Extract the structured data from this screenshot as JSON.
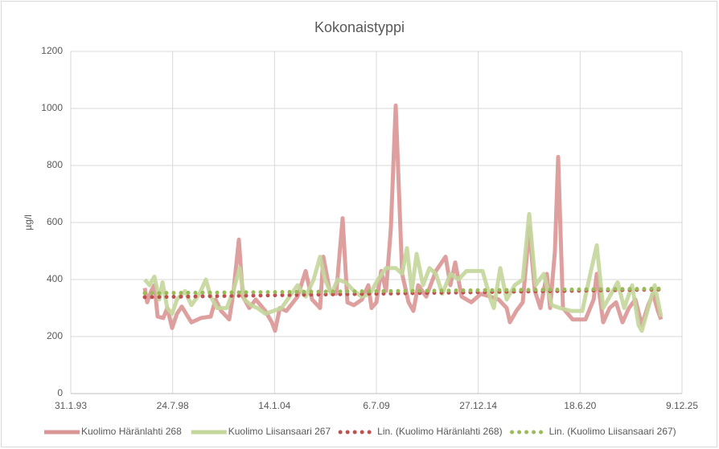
{
  "chart_data": {
    "type": "line",
    "title": "Kokonaistyppi",
    "y_label": "µg/l",
    "xlim": [
      34000,
      46000
    ],
    "xticks": [
      {
        "value": 34000,
        "label": "31.1.93"
      },
      {
        "value": 36000,
        "label": "24.7.98"
      },
      {
        "value": 38000,
        "label": "14.1.04"
      },
      {
        "value": 40000,
        "label": "6.7.09"
      },
      {
        "value": 42000,
        "label": "27.12.14"
      },
      {
        "value": 44000,
        "label": "18.6.20"
      },
      {
        "value": 46000,
        "label": "9.12.25"
      }
    ],
    "ylim": [
      0,
      1200
    ],
    "yticks": [
      0,
      200,
      400,
      600,
      800,
      1000,
      1200
    ],
    "grid": true,
    "legend": "bottom",
    "series": [
      {
        "name": "Kuolimo Häränlahti 268",
        "color": "#d99694",
        "style": "solid",
        "x": [
          35453,
          35500,
          35579,
          35642,
          35705,
          35816,
          35895,
          35990,
          36084,
          36179,
          36368,
          36558,
          36747,
          36842,
          36953,
          37111,
          37190,
          37300,
          37379,
          37505,
          37632,
          37821,
          37947,
          38011,
          38105,
          38232,
          38453,
          38611,
          38737,
          38895,
          38958,
          39084,
          39211,
          39337,
          39432,
          39558,
          39716,
          39842,
          39905,
          40000,
          40095,
          40190,
          40284,
          40379,
          40505,
          40632,
          40727,
          40821,
          40979,
          41169,
          41358,
          41453,
          41548,
          41674,
          41863,
          42053,
          42242,
          42400,
          42558,
          42621,
          42748,
          42874,
          43000,
          43111,
          43221,
          43348,
          43411,
          43506,
          43569,
          43663,
          43853,
          44106,
          44264,
          44327,
          44453,
          44579,
          44706,
          44832,
          44958,
          45085,
          45211,
          45337,
          45432,
          45527,
          45590
        ],
        "values": [
          370,
          320,
          360,
          380,
          270,
          265,
          300,
          230,
          280,
          305,
          250,
          265,
          270,
          330,
          290,
          260,
          350,
          540,
          340,
          300,
          330,
          290,
          250,
          220,
          300,
          290,
          340,
          430,
          330,
          300,
          480,
          360,
          350,
          615,
          320,
          310,
          330,
          380,
          300,
          320,
          430,
          360,
          580,
          1010,
          420,
          320,
          290,
          380,
          340,
          430,
          480,
          380,
          460,
          340,
          320,
          350,
          340,
          330,
          300,
          250,
          290,
          320,
          580,
          360,
          300,
          420,
          300,
          500,
          830,
          300,
          260,
          260,
          330,
          420,
          250,
          300,
          320,
          250,
          300,
          330,
          240,
          310,
          350,
          290,
          260
        ]
      },
      {
        "name": "Kuolimo Liisansaari 267",
        "color": "#c3d69b",
        "style": "solid",
        "x": [
          35453,
          35547,
          35642,
          35737,
          35800,
          35895,
          35990,
          36084,
          36242,
          36368,
          36526,
          36653,
          36747,
          36874,
          37063,
          37190,
          37316,
          37411,
          37537,
          37663,
          37821,
          37979,
          38137,
          38295,
          38453,
          38611,
          38769,
          38895,
          38990,
          39116,
          39242,
          39400,
          39558,
          39716,
          39874,
          40032,
          40190,
          40379,
          40505,
          40600,
          40695,
          40790,
          40916,
          41042,
          41169,
          41295,
          41453,
          41611,
          41769,
          42084,
          42242,
          42306,
          42432,
          42558,
          42716,
          42874,
          43000,
          43127,
          43285,
          43442,
          43600,
          43821,
          44042,
          44200,
          44327,
          44453,
          44611,
          44737,
          44864,
          45021,
          45148,
          45211,
          45337,
          45464,
          45590
        ],
        "values": [
          400,
          380,
          410,
          330,
          390,
          300,
          280,
          330,
          360,
          310,
          350,
          400,
          340,
          300,
          300,
          360,
          440,
          330,
          310,
          300,
          280,
          290,
          300,
          340,
          380,
          340,
          400,
          480,
          400,
          350,
          400,
          390,
          360,
          340,
          350,
          400,
          440,
          440,
          420,
          510,
          360,
          490,
          380,
          440,
          420,
          350,
          420,
          400,
          430,
          430,
          330,
          300,
          440,
          330,
          380,
          400,
          630,
          380,
          420,
          310,
          300,
          290,
          290,
          420,
          520,
          300,
          350,
          390,
          300,
          380,
          240,
          220,
          300,
          380,
          270
        ]
      },
      {
        "name": "Lin. (Kuolimo Häränlahti 268)",
        "color": "#c0504d",
        "style": "dotted",
        "x": [
          35453,
          45590
        ],
        "values": [
          338,
          365
        ]
      },
      {
        "name": "Lin. (Kuolimo Liisansaari 267)",
        "color": "#9bbb59",
        "style": "dotted",
        "x": [
          35453,
          45590
        ],
        "values": [
          352,
          368
        ]
      }
    ]
  }
}
